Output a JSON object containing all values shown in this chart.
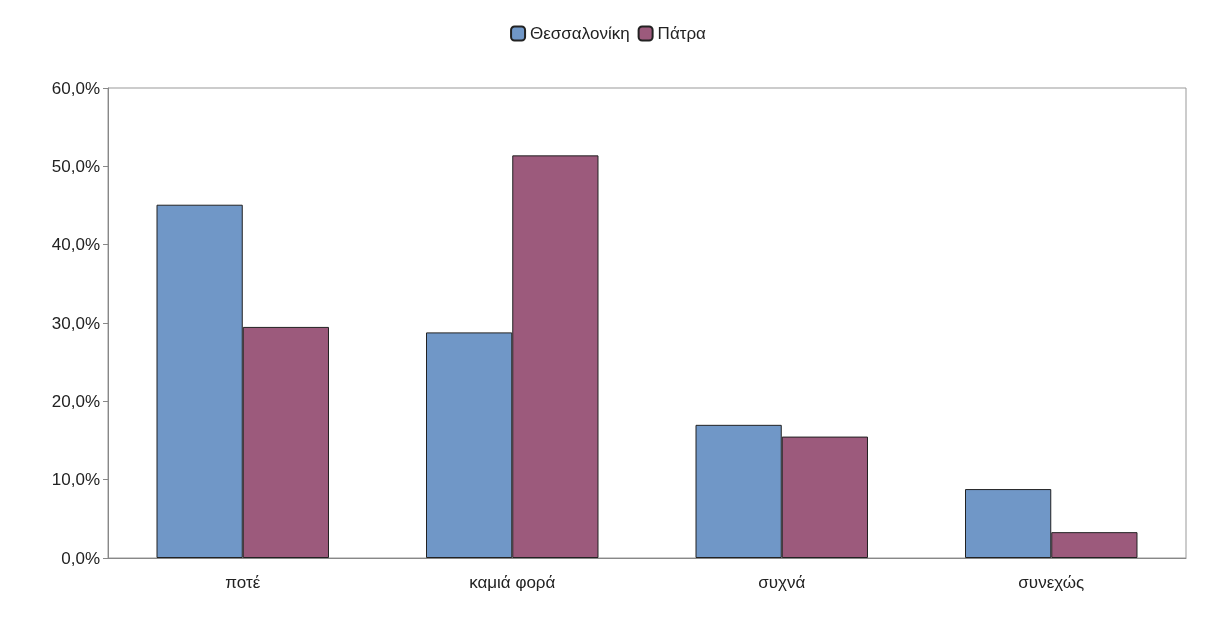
{
  "chart_data": {
    "type": "bar",
    "categories": [
      "ποτέ",
      "καμιά φορά",
      "συχνά",
      "συνεχώς"
    ],
    "series": [
      {
        "name": "Θεσσαλονίκη",
        "color": "#7097c7",
        "values": [
          45.1,
          28.8,
          17.0,
          8.8
        ]
      },
      {
        "name": "Πάτρα",
        "color": "#9c5a7c",
        "values": [
          29.5,
          51.4,
          15.5,
          3.3
        ]
      }
    ],
    "ylim": [
      0,
      60
    ],
    "yticks": [
      {
        "value": 0,
        "label": "0,0%"
      },
      {
        "value": 10,
        "label": "10,0%"
      },
      {
        "value": 20,
        "label": "20,0%"
      },
      {
        "value": 30,
        "label": "30,0%"
      },
      {
        "value": 40,
        "label": "40,0%"
      },
      {
        "value": 50,
        "label": "50,0%"
      },
      {
        "value": 60,
        "label": "60,0%"
      }
    ],
    "grid": false,
    "legend": "top"
  }
}
